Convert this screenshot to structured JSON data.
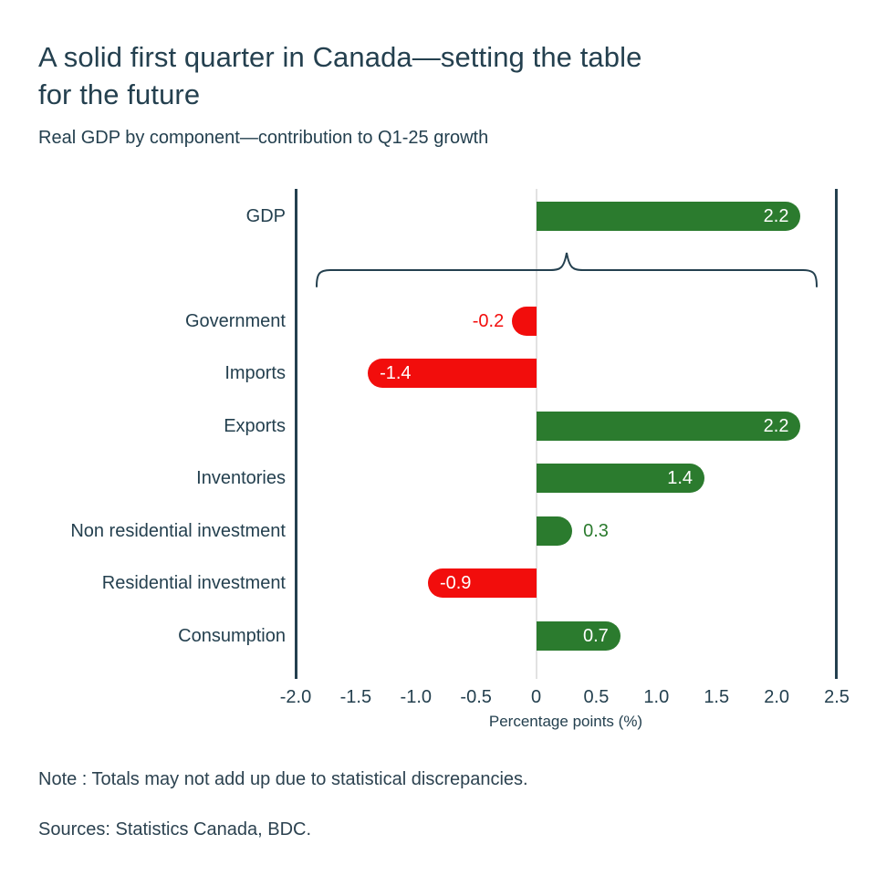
{
  "header": {
    "title_line1": "A solid first quarter in Canada—setting the table",
    "title_line2": "for the future",
    "subtitle": "Real GDP by component—contribution to Q1-25 growth"
  },
  "chart_data": {
    "type": "bar",
    "orientation": "horizontal",
    "title": "A solid first quarter in Canada—setting the table for the future",
    "subtitle": "Real GDP by component—contribution to Q1-25 growth",
    "categories": [
      "GDP",
      "Government",
      "Imports",
      "Exports",
      "Inventories",
      "Non residential investment",
      "Residential investment",
      "Consumption"
    ],
    "values": [
      2.2,
      -0.2,
      -1.4,
      2.2,
      1.4,
      0.3,
      -0.9,
      0.7
    ],
    "value_labels": [
      "2.2",
      "-0.2",
      "-1.4",
      "2.2",
      "1.4",
      "0.3",
      "-0.9",
      "0.7"
    ],
    "xlabel": "Percentage points (%)",
    "xlim": [
      -2.0,
      2.5
    ],
    "x_ticks": [
      "-2.0",
      "-1.5",
      "-1.0",
      "-0.5",
      "0",
      "0.5",
      "1.0",
      "1.5",
      "2.0",
      "2.5"
    ],
    "x_tick_values": [
      -2.0,
      -1.5,
      -1.0,
      -0.5,
      0,
      0.5,
      1.0,
      1.5,
      2.0,
      2.5
    ],
    "grid": false,
    "legend": "none",
    "annotation": "curly brace grouping all component bars below the GDP total bar",
    "colors": {
      "positive": "#2b7b2e",
      "negative": "#f20d0c",
      "axis": "#24404f",
      "zero_line": "#e2e2e2",
      "text": "#24404f",
      "value_inside": "#ffffff"
    }
  },
  "footer": {
    "note": "Note : Totals may not add up due to statistical discrepancies.",
    "sources": "Sources: Statistics Canada, BDC."
  }
}
